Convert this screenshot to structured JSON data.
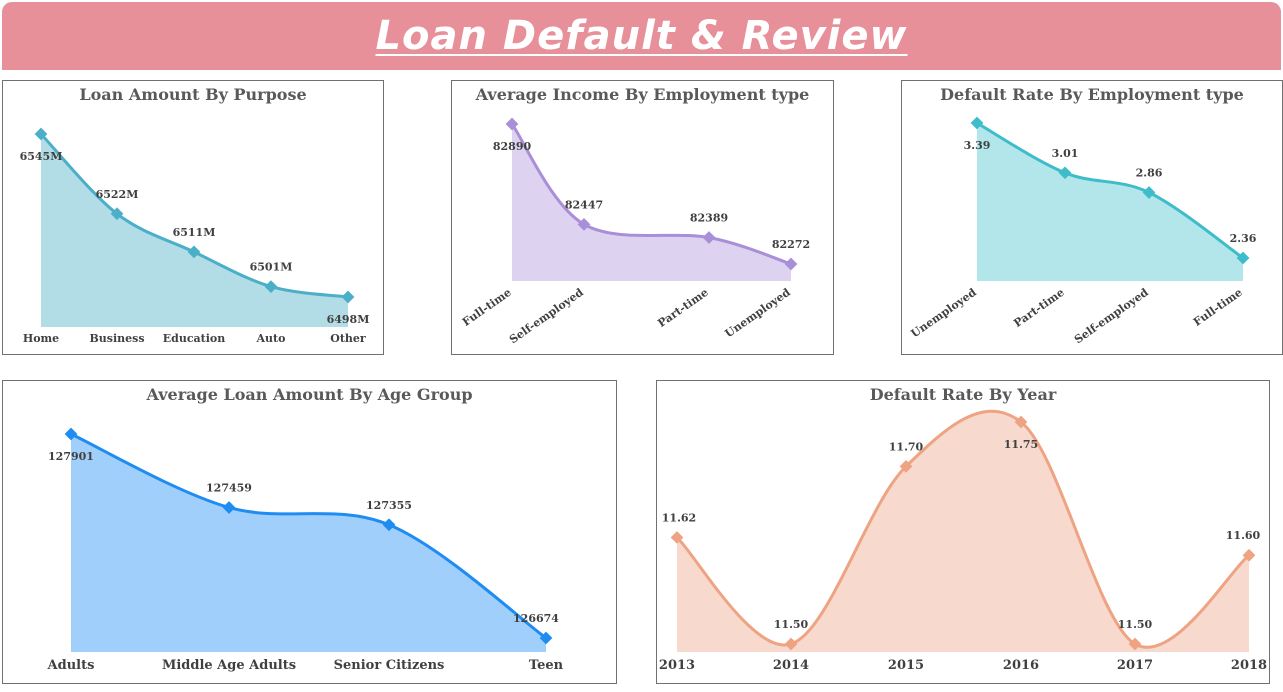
{
  "header": {
    "title": "Loan Default & Review"
  },
  "chart_data": [
    {
      "id": "purpose",
      "type": "area",
      "title": "Loan Amount By Purpose",
      "categories": [
        "Home",
        "Business",
        "Education",
        "Auto",
        "Other"
      ],
      "values": [
        6545,
        6522,
        6511,
        6501,
        6498
      ],
      "labels": [
        "6545M",
        "6522M",
        "6511M",
        "6501M",
        "6498M"
      ],
      "color": "#4bafc8",
      "fill": "#b3dde6",
      "grid": false,
      "legend": "none"
    },
    {
      "id": "income",
      "type": "area",
      "title": "Average Income By Employment type",
      "categories": [
        "Full-time",
        "Self-employed",
        "Part-time",
        "Unemployed"
      ],
      "values": [
        82890,
        82447,
        82389,
        82272
      ],
      "labels": [
        "82890",
        "82447",
        "82389",
        "82272"
      ],
      "color": "#a98ed8",
      "fill": "#ddd2f0",
      "grid": false,
      "legend": "none"
    },
    {
      "id": "default_emp",
      "type": "area",
      "title": "Default Rate By Employment type",
      "categories": [
        "Unemployed",
        "Part-time",
        "Self-employed",
        "Full-time"
      ],
      "values": [
        3.39,
        3.01,
        2.86,
        2.36
      ],
      "labels": [
        "3.39",
        "3.01",
        "2.86",
        "2.36"
      ],
      "color": "#3fbcca",
      "fill": "#b2e6ea",
      "grid": false,
      "legend": "none"
    },
    {
      "id": "age",
      "type": "area",
      "title": "Average Loan Amount By Age Group",
      "categories": [
        "Adults",
        "Middle Age Adults",
        "Senior Citizens",
        "Teen"
      ],
      "values": [
        127901,
        127459,
        127355,
        126674
      ],
      "labels": [
        "127901",
        "127459",
        "127355",
        "126674"
      ],
      "color": "#1e8cf0",
      "fill": "#a0cffc",
      "grid": false,
      "legend": "none"
    },
    {
      "id": "year",
      "type": "area",
      "title": "Default Rate By Year",
      "categories": [
        "2013",
        "2014",
        "2015",
        "2016",
        "2017",
        "2018"
      ],
      "values": [
        11.62,
        11.5,
        11.7,
        11.75,
        11.5,
        11.6
      ],
      "labels": [
        "11.62",
        "11.50",
        "11.70",
        "11.75",
        "11.50",
        "11.60"
      ],
      "color": "#eea382",
      "fill": "#f8d9cd",
      "grid": false,
      "legend": "none"
    }
  ]
}
